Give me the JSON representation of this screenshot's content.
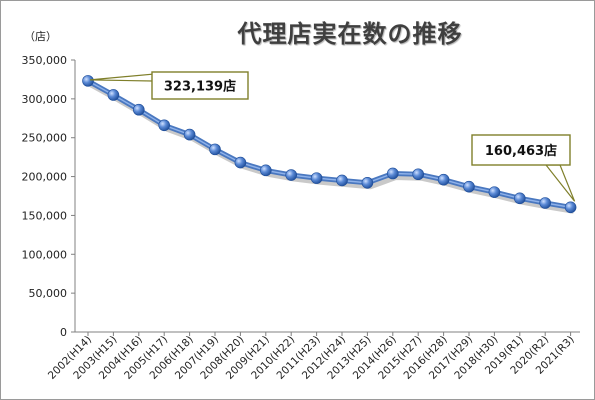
{
  "chart_data": {
    "type": "line",
    "title": "代理店実在数の推移",
    "ylabel": "（店）",
    "ylim": [
      0,
      350000
    ],
    "yticks": [
      0,
      50000,
      100000,
      150000,
      200000,
      250000,
      300000,
      350000
    ],
    "ytick_labels": [
      "0",
      "50,000",
      "100,000",
      "150,000",
      "200,000",
      "250,000",
      "300,000",
      "350,000"
    ],
    "categories": [
      "2002(H14)",
      "2003(H15)",
      "2004(H16)",
      "2005(H17)",
      "2006(H18)",
      "2007(H19)",
      "2008(H20)",
      "2009(H21)",
      "2010(H22)",
      "2011(H23)",
      "2012(H24)",
      "2013(H25)",
      "2014(H26)",
      "2015(H27)",
      "2016(H28)",
      "2017(H29)",
      "2018(H30)",
      "2019(R1)",
      "2020(R2)",
      "2021(R3)"
    ],
    "series": [
      {
        "values": [
          323139,
          305000,
          286000,
          266000,
          254000,
          235000,
          218000,
          208000,
          202000,
          198000,
          195000,
          192000,
          204000,
          203000,
          196000,
          187000,
          180000,
          172000,
          166000,
          160463
        ]
      }
    ],
    "annotations": [
      {
        "text": "323,139店",
        "target_index": 0
      },
      {
        "text": "160,463店",
        "target_index": 19
      }
    ],
    "grid": false,
    "line_color": "#4a78c0",
    "marker_color": "#3a6cc0"
  }
}
